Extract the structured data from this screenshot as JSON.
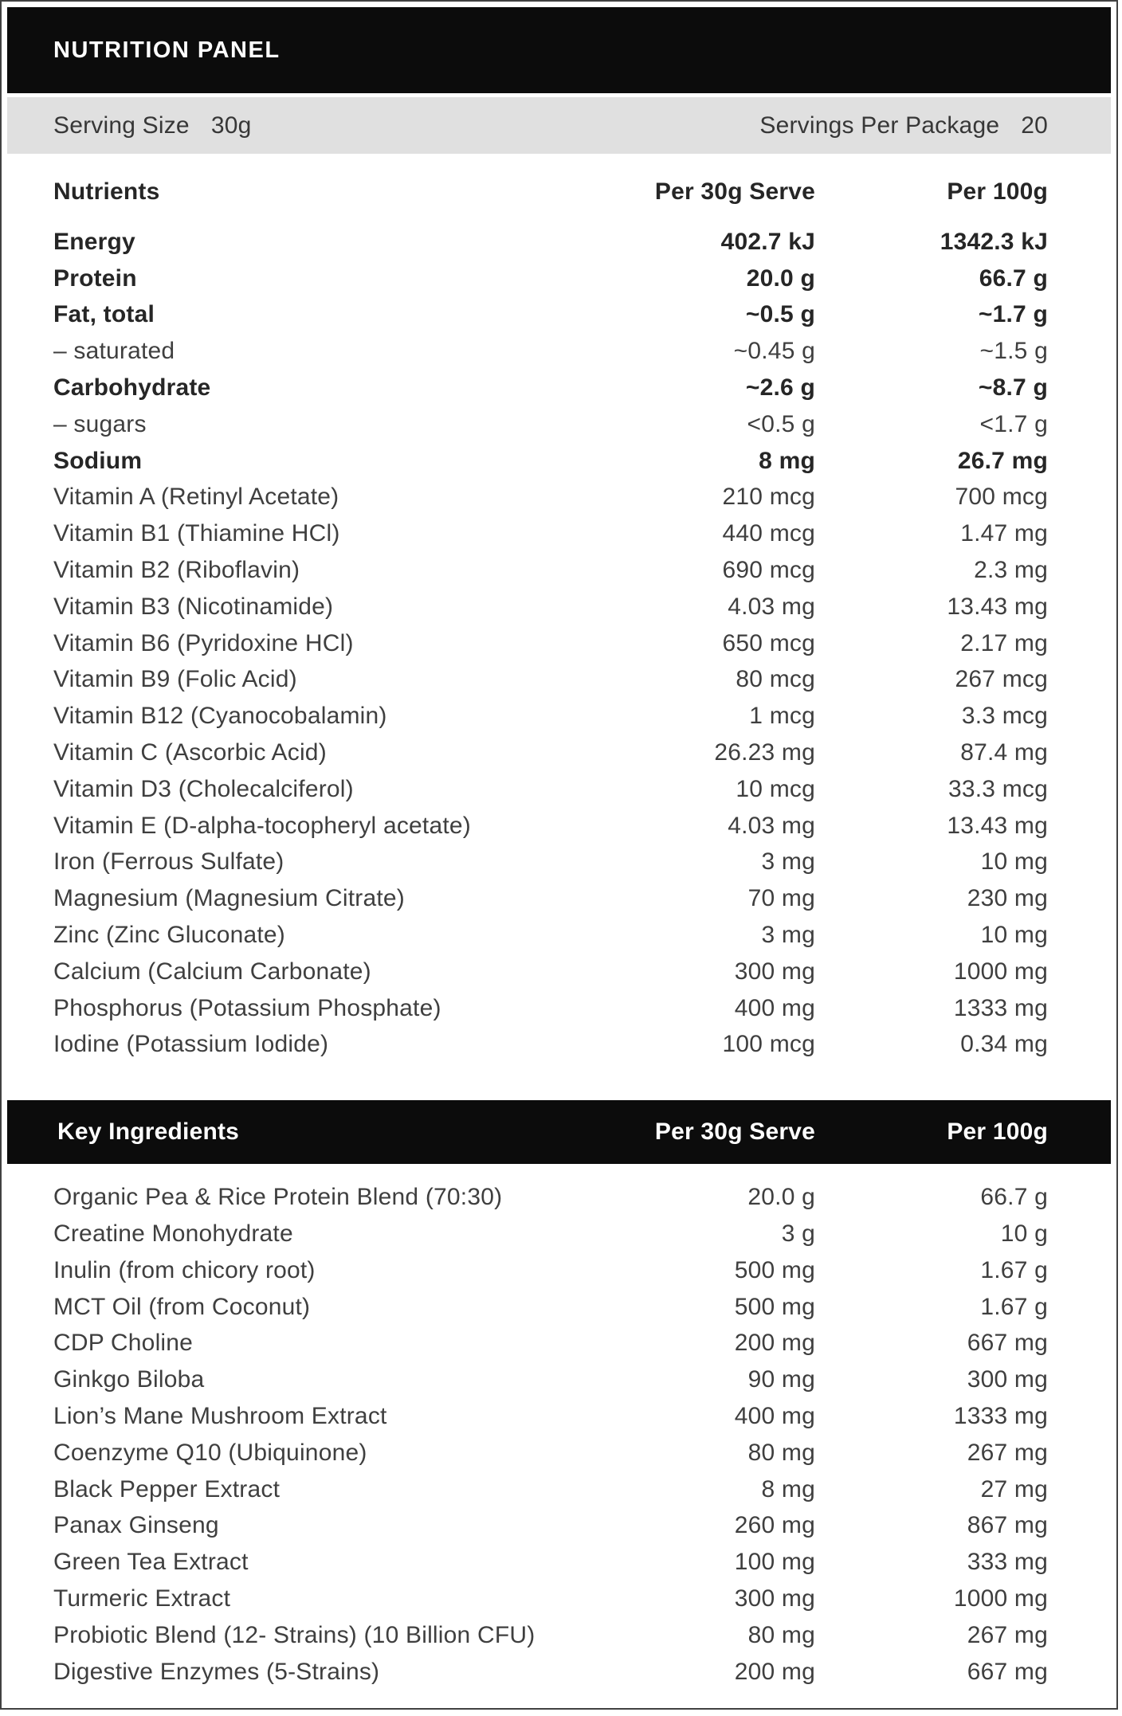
{
  "title": "NUTRITION PANEL",
  "serving": {
    "size_label": "Serving Size",
    "size_value": "30g",
    "per_package_label": "Servings Per Package",
    "per_package_value": "20"
  },
  "nutrients": {
    "header": {
      "col1": "Nutrients",
      "col2": "Per 30g Serve",
      "col3": "Per 100g"
    },
    "rows": [
      {
        "label": "Energy",
        "per_serve": "402.7 kJ",
        "per_100g": "1342.3 kJ",
        "bold": true
      },
      {
        "label": "Protein",
        "per_serve": "20.0 g",
        "per_100g": "66.7 g",
        "bold": true
      },
      {
        "label": "Fat, total",
        "per_serve": "~0.5 g",
        "per_100g": "~1.7 g",
        "bold": true
      },
      {
        "label": "– saturated",
        "per_serve": "~0.45 g",
        "per_100g": "~1.5 g",
        "bold": false
      },
      {
        "label": "Carbohydrate",
        "per_serve": "~2.6 g",
        "per_100g": "~8.7 g",
        "bold": true
      },
      {
        "label": "– sugars",
        "per_serve": "<0.5 g",
        "per_100g": "<1.7 g",
        "bold": false
      },
      {
        "label": "Sodium",
        "per_serve": "8 mg",
        "per_100g": "26.7 mg",
        "bold": true
      },
      {
        "label": "Vitamin A (Retinyl Acetate)",
        "per_serve": "210 mcg",
        "per_100g": "700 mcg",
        "bold": false
      },
      {
        "label": "Vitamin B1 (Thiamine HCl)",
        "per_serve": "440 mcg",
        "per_100g": "1.47 mg",
        "bold": false
      },
      {
        "label": "Vitamin B2 (Riboflavin)",
        "per_serve": "690 mcg",
        "per_100g": "2.3 mg",
        "bold": false
      },
      {
        "label": "Vitamin B3 (Nicotinamide)",
        "per_serve": "4.03 mg",
        "per_100g": "13.43 mg",
        "bold": false
      },
      {
        "label": "Vitamin B6 (Pyridoxine HCl)",
        "per_serve": "650 mcg",
        "per_100g": "2.17 mg",
        "bold": false
      },
      {
        "label": "Vitamin B9 (Folic Acid)",
        "per_serve": "80 mcg",
        "per_100g": "267 mcg",
        "bold": false
      },
      {
        "label": "Vitamin B12 (Cyanocobalamin)",
        "per_serve": "1 mcg",
        "per_100g": "3.3 mcg",
        "bold": false
      },
      {
        "label": "Vitamin C (Ascorbic Acid)",
        "per_serve": "26.23 mg",
        "per_100g": "87.4 mg",
        "bold": false
      },
      {
        "label": "Vitamin D3 (Cholecalciferol)",
        "per_serve": "10 mcg",
        "per_100g": "33.3 mcg",
        "bold": false
      },
      {
        "label": "Vitamin E (D-alpha-tocopheryl acetate)",
        "per_serve": "4.03 mg",
        "per_100g": "13.43 mg",
        "bold": false
      },
      {
        "label": "Iron (Ferrous Sulfate)",
        "per_serve": "3 mg",
        "per_100g": "10 mg",
        "bold": false
      },
      {
        "label": "Magnesium (Magnesium Citrate)",
        "per_serve": "70 mg",
        "per_100g": "230 mg",
        "bold": false
      },
      {
        "label": "Zinc (Zinc Gluconate)",
        "per_serve": "3 mg",
        "per_100g": "10 mg",
        "bold": false
      },
      {
        "label": "Calcium (Calcium Carbonate)",
        "per_serve": "300 mg",
        "per_100g": "1000 mg",
        "bold": false
      },
      {
        "label": "Phosphorus (Potassium Phosphate)",
        "per_serve": "400 mg",
        "per_100g": "1333 mg",
        "bold": false
      },
      {
        "label": "Iodine (Potassium Iodide)",
        "per_serve": "100 mcg",
        "per_100g": "0.34 mg",
        "bold": false
      }
    ]
  },
  "ingredients": {
    "header": {
      "col1": "Key Ingredients",
      "col2": "Per 30g Serve",
      "col3": "Per 100g"
    },
    "rows": [
      {
        "label": "Organic Pea & Rice Protein Blend (70:30)",
        "per_serve": "20.0 g",
        "per_100g": "66.7 g",
        "bold": false
      },
      {
        "label": "Creatine Monohydrate",
        "per_serve": "3 g",
        "per_100g": "10 g",
        "bold": false
      },
      {
        "label": "Inulin (from chicory root)",
        "per_serve": "500 mg",
        "per_100g": "1.67 g",
        "bold": false
      },
      {
        "label": "MCT Oil (from Coconut)",
        "per_serve": "500 mg",
        "per_100g": "1.67 g",
        "bold": false
      },
      {
        "label": "CDP Choline",
        "per_serve": "200 mg",
        "per_100g": "667 mg",
        "bold": false
      },
      {
        "label": "Ginkgo Biloba",
        "per_serve": "90 mg",
        "per_100g": "300 mg",
        "bold": false
      },
      {
        "label": "Lion’s Mane Mushroom Extract",
        "per_serve": "400 mg",
        "per_100g": "1333 mg",
        "bold": false
      },
      {
        "label": "Coenzyme Q10 (Ubiquinone)",
        "per_serve": "80 mg",
        "per_100g": "267 mg",
        "bold": false
      },
      {
        "label": "Black Pepper Extract",
        "per_serve": "8 mg",
        "per_100g": "27 mg",
        "bold": false
      },
      {
        "label": "Panax Ginseng",
        "per_serve": "260 mg",
        "per_100g": "867 mg",
        "bold": false
      },
      {
        "label": "Green Tea Extract",
        "per_serve": "100 mg",
        "per_100g": "333 mg",
        "bold": false
      },
      {
        "label": "Turmeric Extract",
        "per_serve": "300 mg",
        "per_100g": "1000 mg",
        "bold": false
      },
      {
        "label": "Probiotic Blend (12- Strains) (10 Billion CFU)",
        "per_serve": "80 mg",
        "per_100g": "267 mg",
        "bold": false
      },
      {
        "label": "Digestive Enzymes (5-Strains)",
        "per_serve": "200 mg",
        "per_100g": "667 mg",
        "bold": false
      }
    ]
  },
  "colors": {
    "header_bg": "#0c0c0c",
    "header_text": "#ffffff",
    "serving_bar_bg": "#e0e0e0",
    "body_text": "#3f3f3f",
    "bold_text": "#262626",
    "border": "#414141"
  }
}
